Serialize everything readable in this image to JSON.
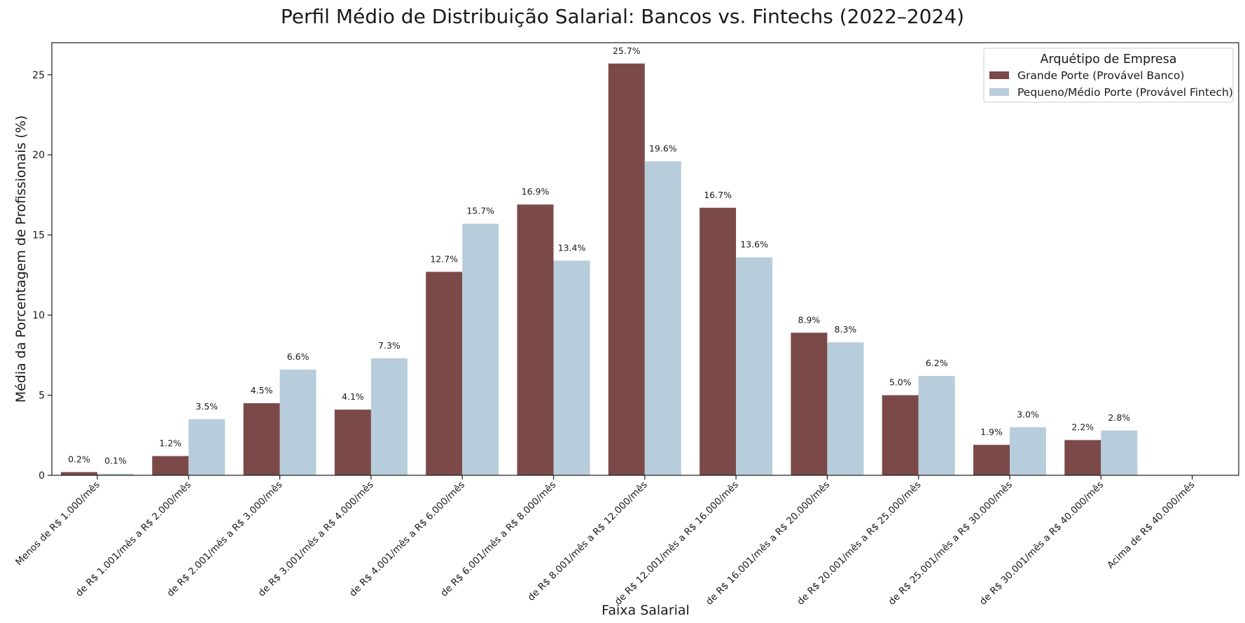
{
  "chart_data": {
    "type": "bar",
    "title": "Perfil Médio de Distribuição Salarial: Bancos vs. Fintechs (2022–2024)",
    "xlabel": "Faixa Salarial",
    "ylabel": "Média da Porcentagem de Profissionais (%)",
    "ylim": [
      0,
      27
    ],
    "yticks": [
      0,
      5,
      10,
      15,
      20,
      25
    ],
    "grid": false,
    "legend": {
      "title": "Arquétipo de Empresa",
      "position": "top-right"
    },
    "categories": [
      "Menos de R$ 1.000/mês",
      "de R$ 1.001/mês a R$ 2.000/mês",
      "de R$ 2.001/mês a R$ 3.000/mês",
      "de R$ 3.001/mês a R$ 4.000/mês",
      "de R$ 4.001/mês a R$ 6.000/mês",
      "de R$ 6.001/mês a R$ 8.000/mês",
      "de R$ 8.001/mês a R$ 12.000/mês",
      "de R$ 12.001/mês a R$ 16.000/mês",
      "de R$ 16.001/mês a R$ 20.000/mês",
      "de R$ 20.001/mês a R$ 25.000/mês",
      "de R$ 25.001/mês a R$ 30.000/mês",
      "de R$ 30.001/mês a R$ 40.000/mês",
      "Acima de R$ 40.000/mês"
    ],
    "series": [
      {
        "name": "Grande Porte (Provável Banco)",
        "color": "#7b4a48",
        "values": [
          0.2,
          1.2,
          4.5,
          4.1,
          12.7,
          16.9,
          25.7,
          16.7,
          8.9,
          5.0,
          1.9,
          2.2,
          null
        ],
        "labels": [
          "0.2%",
          "1.2%",
          "4.5%",
          "4.1%",
          "12.7%",
          "16.9%",
          "25.7%",
          "16.7%",
          "8.9%",
          "5.0%",
          "1.9%",
          "2.2%",
          ""
        ]
      },
      {
        "name": "Pequeno/Médio Porte (Provável Fintech)",
        "color": "#b8cddb",
        "values": [
          0.1,
          3.5,
          6.6,
          7.3,
          15.7,
          13.4,
          19.6,
          13.6,
          8.3,
          6.2,
          3.0,
          2.8,
          null
        ],
        "labels": [
          "0.1%",
          "3.5%",
          "6.6%",
          "7.3%",
          "15.7%",
          "13.4%",
          "19.6%",
          "13.6%",
          "8.3%",
          "6.2%",
          "3.0%",
          "2.8%",
          ""
        ]
      }
    ]
  }
}
